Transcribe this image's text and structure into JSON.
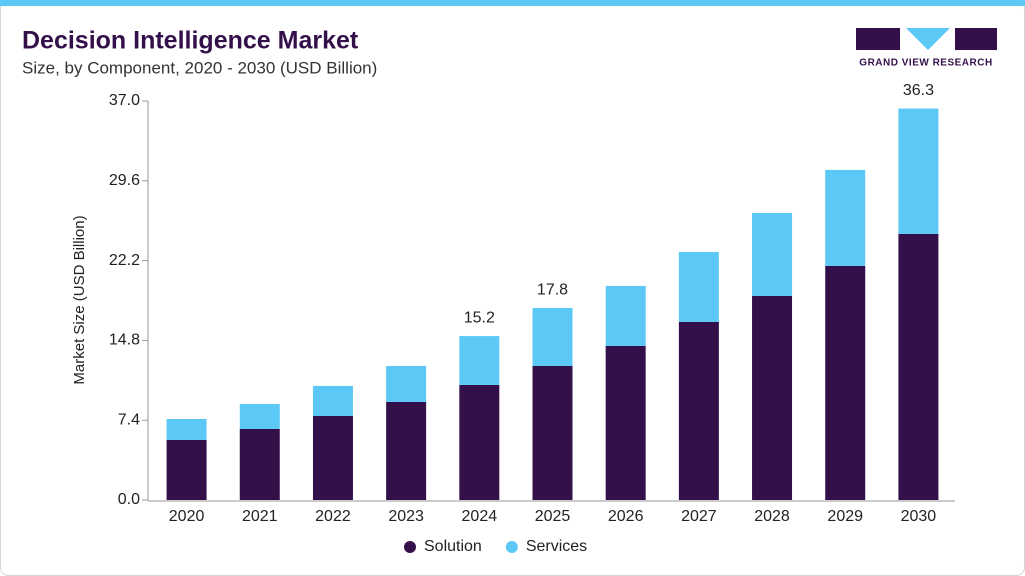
{
  "logo": {
    "text": "GRAND VIEW RESEARCH"
  },
  "chart_data": {
    "type": "stacked-bar",
    "title": "Decision Intelligence Market",
    "subtitle": "Size, by Component, 2020 - 2030 (USD Billion)",
    "y_label": "Market Size (USD Billion)",
    "categories": [
      "2020",
      "2021",
      "2022",
      "2023",
      "2024",
      "2025",
      "2026",
      "2027",
      "2028",
      "2029",
      "2030"
    ],
    "series": [
      {
        "name": "Solution",
        "color": "#34104a",
        "values": [
          5.57,
          6.59,
          7.79,
          9.09,
          10.67,
          12.43,
          14.29,
          16.51,
          18.92,
          21.71,
          24.68
        ]
      },
      {
        "name": "Services",
        "color": "#5bc8f5",
        "values": [
          1.94,
          2.31,
          2.79,
          3.34,
          4.53,
          5.37,
          5.56,
          6.49,
          7.7,
          8.9,
          11.62
        ]
      }
    ],
    "total_labels": [
      null,
      null,
      null,
      null,
      15.2,
      17.8,
      null,
      null,
      null,
      null,
      36.3
    ],
    "ylim": [
      0,
      37
    ],
    "yticks": [
      {
        "value": 0,
        "label": "0.0"
      },
      7.4,
      14.8,
      22.2,
      29.6,
      {
        "value": 37,
        "label": "37.0"
      }
    ],
    "grid": false,
    "legend": "bottom"
  }
}
